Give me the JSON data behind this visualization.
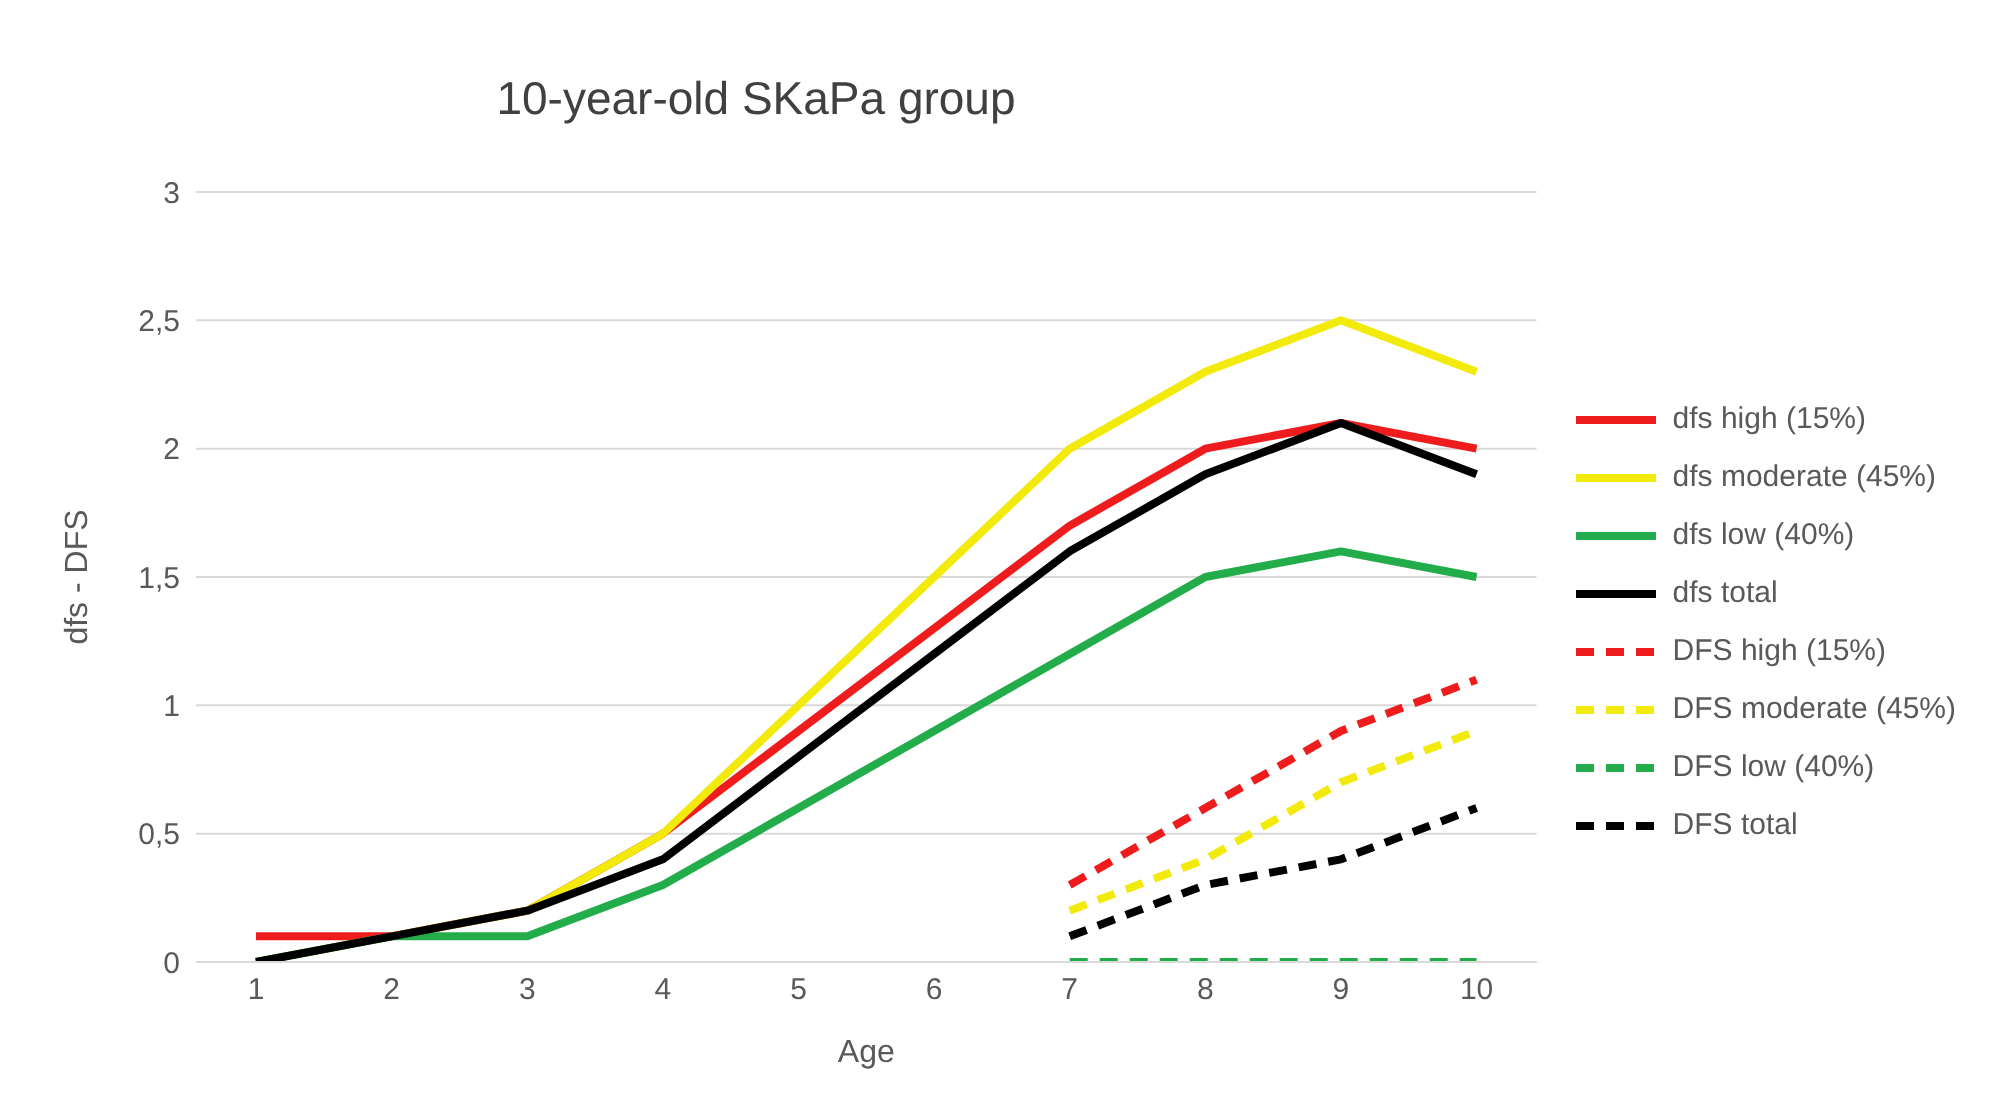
{
  "chart_data": {
    "type": "line",
    "title": "10-year-old SKaPa group",
    "xlabel": "Age",
    "ylabel": "dfs - DFS",
    "categories": [
      "1",
      "2",
      "3",
      "4",
      "5",
      "6",
      "7",
      "8",
      "9",
      "10"
    ],
    "series": [
      {
        "name": "dfs high (15%)",
        "color": "#ee1c1c",
        "values": [
          0.1,
          0.1,
          0.2,
          0.5,
          0.9,
          1.3,
          1.7,
          2.0,
          2.1,
          2.0
        ]
      },
      {
        "name": "dfs moderate (45%)",
        "color": "#f2ea0a",
        "values": [
          0,
          0.1,
          0.2,
          0.5,
          1.0,
          1.5,
          2.0,
          2.3,
          2.5,
          2.3
        ]
      },
      {
        "name": "dfs low (40%)",
        "color": "#22ad4a",
        "values": [
          0,
          0.1,
          0.1,
          0.3,
          0.6,
          0.9,
          1.2,
          1.5,
          1.6,
          1.5
        ]
      },
      {
        "name": "dfs total",
        "color": "#000000",
        "values": [
          0,
          0.1,
          0.2,
          0.4,
          0.8,
          1.2,
          1.6,
          1.9,
          2.1,
          1.9
        ]
      },
      {
        "name": "DFS high (15%)",
        "color": "#ee1c1c",
        "line_style": "dashed",
        "values": [
          null,
          null,
          null,
          null,
          null,
          null,
          0.3,
          0.6,
          0.9,
          1.1
        ]
      },
      {
        "name": "DFS moderate (45%)",
        "color": "#f2ea0a",
        "line_style": "dashed",
        "values": [
          null,
          null,
          null,
          null,
          null,
          null,
          0.2,
          0.4,
          0.7,
          0.9
        ]
      },
      {
        "name": "DFS low (40%)",
        "color": "#22ad4a",
        "line_style": "dashed",
        "values": [
          null,
          null,
          null,
          null,
          null,
          null,
          0,
          0,
          0,
          0
        ]
      },
      {
        "name": "DFS total",
        "color": "#000000",
        "line_style": "dashed",
        "values": [
          null,
          null,
          null,
          null,
          null,
          null,
          0.1,
          0.3,
          0.4,
          0.6
        ]
      }
    ],
    "ylim": [
      0,
      3
    ],
    "yticks": [
      0,
      {
        "value": 0.5,
        "label": "0,5"
      },
      1,
      {
        "value": 1.5,
        "label": "1,5"
      },
      2,
      {
        "value": 2.5,
        "label": "2,5"
      },
      3
    ],
    "grid": "y",
    "legend": "right",
    "marker": "none",
    "line_style": "solid"
  }
}
